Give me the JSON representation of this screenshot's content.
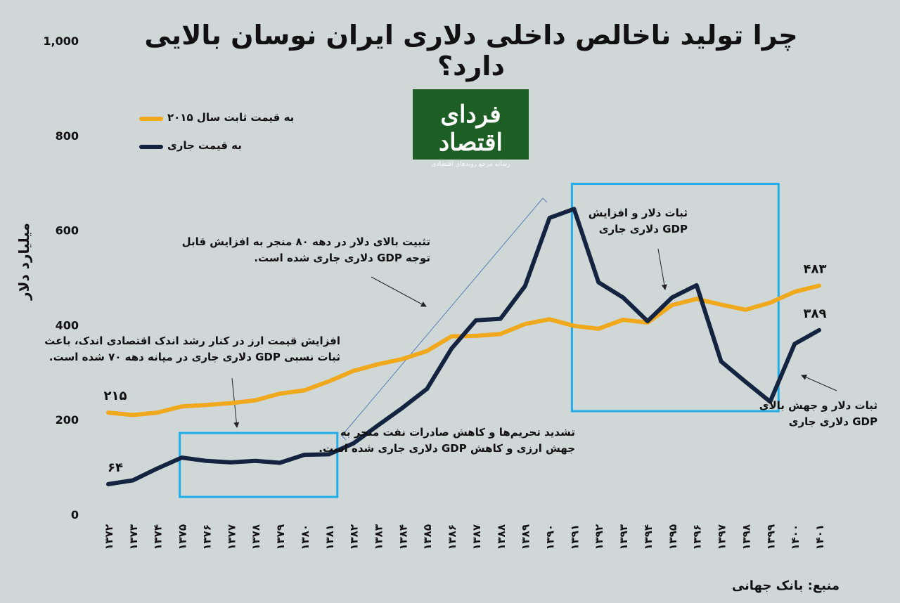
{
  "title": "چرا تولید ناخالص داخلی دلاری ایران نوسان بالایی دارد؟",
  "logo": {
    "main": "فردای اقتصاد",
    "sub": "رسانه مرجع روندهای اقتصادی"
  },
  "source": "منبع: بانک جهانی",
  "annotations": {
    "a1": [
      "افزایش قیمت ارز در کنار رشد اندک اقتصادی اندک، باعث",
      "ثبات نسبی GDP دلاری جاری در میانه دهه ۷۰ شده است."
    ],
    "a2": [
      "تثبیت بالای دلار در دهه ۸۰ منجر به افزایش قابل",
      "توجه GDP دلاری جاری شده است."
    ],
    "a3": [
      "ثبات دلار و افزایش",
      "GDP دلاری جاری"
    ],
    "a4": [
      "تشدید تحریم‌ها و کاهش صادرات نفت منجر به",
      "جهش ارزی و کاهش GDP دلاری جاری شده است."
    ],
    "a5": [
      "ثبات دلار و جهش بالای",
      "GDP دلاری جاری"
    ]
  },
  "chart_data": {
    "type": "line",
    "title": "چرا تولید ناخالص داخلی دلاری ایران نوسان بالایی دارد؟",
    "ylabel": "میلیارد دلار",
    "xlabel": "",
    "ylim": [
      0,
      1000
    ],
    "yticks": [
      "0",
      "200",
      "400",
      "600",
      "800",
      "1,000"
    ],
    "grid": false,
    "legend_position": "top-left",
    "categories": [
      "۱۳۷۲",
      "۱۳۷۳",
      "۱۳۷۴",
      "۱۳۷۵",
      "۱۳۷۶",
      "۱۳۷۷",
      "۱۳۷۸",
      "۱۳۷۹",
      "۱۳۸۰",
      "۱۳۸۱",
      "۱۳۸۲",
      "۱۳۸۳",
      "۱۳۸۴",
      "۱۳۸۵",
      "۱۳۸۶",
      "۱۳۸۷",
      "۱۳۸۸",
      "۱۳۸۹",
      "۱۳۹۰",
      "۱۳۹۱",
      "۱۳۹۲",
      "۱۳۹۳",
      "۱۳۹۴",
      "۱۳۹۵",
      "۱۳۹۶",
      "۱۳۹۷",
      "۱۳۹۸",
      "۱۳۹۹",
      "۱۴۰۰",
      "۱۴۰۱"
    ],
    "series": [
      {
        "name": "به قیمت ثابت سال ۲۰۱۵",
        "color": "#f0a81c",
        "values": [
          215,
          210,
          215,
          228,
          231,
          235,
          241,
          255,
          262,
          281,
          303,
          317,
          328,
          345,
          376,
          377,
          381,
          402,
          412,
          398,
          392,
          411,
          405,
          442,
          455,
          443,
          432,
          447,
          470,
          483
        ],
        "first_label": "۲۱۵",
        "last_label": "۴۸۳"
      },
      {
        "name": "به قیمت جاری",
        "color": "#14233f",
        "values": [
          64,
          72,
          97,
          120,
          113,
          110,
          113,
          109,
          126,
          127,
          150,
          188,
          225,
          265,
          350,
          410,
          413,
          482,
          626,
          645,
          490,
          458,
          408,
          458,
          484,
          323,
          280,
          238,
          360,
          389
        ],
        "first_label": "۶۴",
        "last_label": "۳۸۹"
      }
    ],
    "highlight_boxes": [
      {
        "from": "۱۳۷۵",
        "to": "۱۳۸۱",
        "range": [
          37,
          172
        ]
      },
      {
        "from": "۱۳۹۱",
        "to": "۱۳۹۹",
        "range": [
          218,
          698
        ]
      }
    ]
  }
}
